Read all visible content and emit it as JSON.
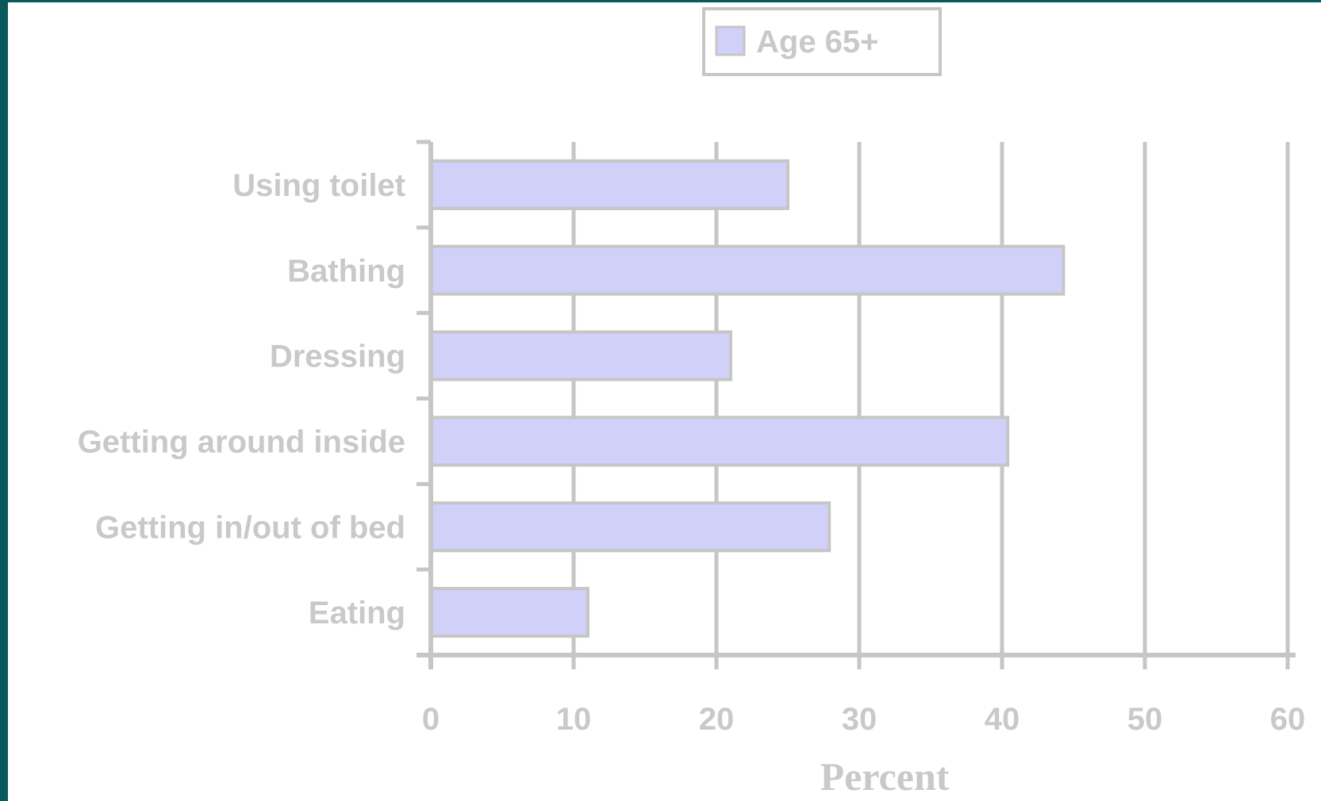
{
  "colors": {
    "frame": "#07595b",
    "bar_fill": "#d0d0f9",
    "bar_stroke": "#c6c6c6",
    "grid": "#c6c6c6",
    "text": "#c9c9c9"
  },
  "chart_data": {
    "type": "bar",
    "orientation": "horizontal",
    "categories": [
      "Using toilet",
      "Bathing",
      "Dressing",
      "Getting around inside",
      "Getting in/out of bed",
      "Eating"
    ],
    "series": [
      {
        "name": "Age 65+",
        "values": [
          25,
          44.3,
          21,
          40.4,
          27.9,
          11
        ]
      }
    ],
    "xlabel": "Percent",
    "ylabel": "",
    "xlim": [
      0,
      60
    ],
    "xticks": [
      0,
      10,
      20,
      30,
      40,
      50,
      60
    ],
    "grid": true,
    "legend": "top-center"
  }
}
